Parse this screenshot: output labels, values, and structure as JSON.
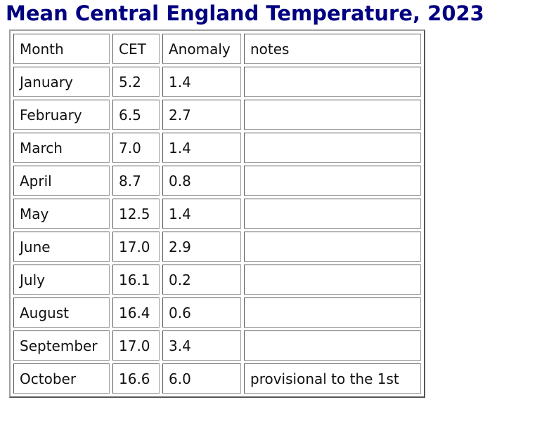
{
  "header": {
    "title": "Mean Central England Temperature, 2023"
  },
  "table": {
    "columns": [
      "Month",
      "CET",
      "Anomaly",
      "notes"
    ],
    "rows": [
      [
        "January",
        "5.2",
        "1.4"
      ],
      [
        "February",
        "6.5",
        "2.7"
      ],
      [
        "March",
        "7.0",
        "1.4"
      ],
      [
        "April",
        "8.7",
        "0.8"
      ],
      [
        "May",
        "12.5",
        "1.4"
      ],
      [
        "June",
        "17.0",
        "2.9"
      ],
      [
        "July",
        "16.1",
        "0.2"
      ],
      [
        "August",
        "16.4",
        "0.6"
      ],
      [
        "September",
        "17.0",
        "3.4"
      ],
      [
        "October",
        "16.6",
        "6.0",
        "provisional to the 1st"
      ]
    ]
  }
}
